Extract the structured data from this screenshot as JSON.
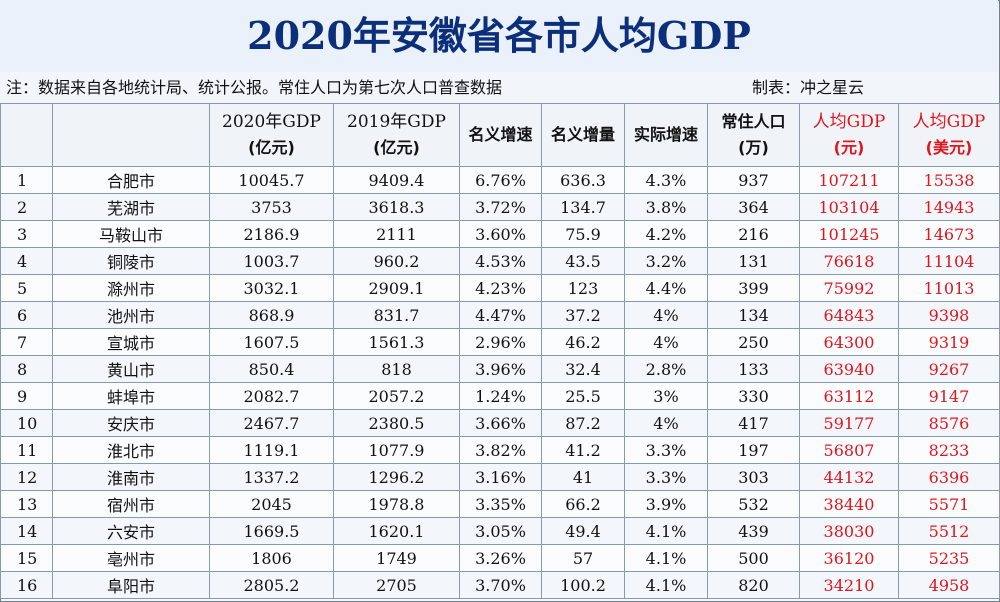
{
  "title": "2020年安徽省各市人均GDP",
  "note": {
    "text": "注：数据来自各地统计局、统计公报。常住人口为第七次人口普查数据",
    "author": "制表：冲之星云"
  },
  "header": {
    "idx": "",
    "city": "",
    "gdp2020_a": "2020年GDP",
    "gdp2020_b": "(亿元)",
    "gdp2019_a": "2019年GDP",
    "gdp2019_b": "(亿元)",
    "nominal_rate": "名义增速",
    "nominal_incr": "名义增量",
    "real_rate": "实际增速",
    "pop_a": "常住人口",
    "pop_b": "(万)",
    "pc_yuan_a": "人均GDP",
    "pc_yuan_b": "(元)",
    "pc_usd_a": "人均GDP",
    "pc_usd_b": "(美元)"
  },
  "rows": [
    {
      "idx": "1",
      "city": "合肥市",
      "gdp2020": "10045.7",
      "gdp2019": "9409.4",
      "nominal_rate": "6.76%",
      "nominal_incr": "636.3",
      "real_rate": "4.3%",
      "pop": "937",
      "pc_yuan": "107211",
      "pc_usd": "15538"
    },
    {
      "idx": "2",
      "city": "芜湖市",
      "gdp2020": "3753",
      "gdp2019": "3618.3",
      "nominal_rate": "3.72%",
      "nominal_incr": "134.7",
      "real_rate": "3.8%",
      "pop": "364",
      "pc_yuan": "103104",
      "pc_usd": "14943"
    },
    {
      "idx": "3",
      "city": "马鞍山市",
      "gdp2020": "2186.9",
      "gdp2019": "2111",
      "nominal_rate": "3.60%",
      "nominal_incr": "75.9",
      "real_rate": "4.2%",
      "pop": "216",
      "pc_yuan": "101245",
      "pc_usd": "14673"
    },
    {
      "idx": "4",
      "city": "铜陵市",
      "gdp2020": "1003.7",
      "gdp2019": "960.2",
      "nominal_rate": "4.53%",
      "nominal_incr": "43.5",
      "real_rate": "3.2%",
      "pop": "131",
      "pc_yuan": "76618",
      "pc_usd": "11104"
    },
    {
      "idx": "5",
      "city": "滁州市",
      "gdp2020": "3032.1",
      "gdp2019": "2909.1",
      "nominal_rate": "4.23%",
      "nominal_incr": "123",
      "real_rate": "4.4%",
      "pop": "399",
      "pc_yuan": "75992",
      "pc_usd": "11013"
    },
    {
      "idx": "6",
      "city": "池州市",
      "gdp2020": "868.9",
      "gdp2019": "831.7",
      "nominal_rate": "4.47%",
      "nominal_incr": "37.2",
      "real_rate": "4%",
      "pop": "134",
      "pc_yuan": "64843",
      "pc_usd": "9398"
    },
    {
      "idx": "7",
      "city": "宣城市",
      "gdp2020": "1607.5",
      "gdp2019": "1561.3",
      "nominal_rate": "2.96%",
      "nominal_incr": "46.2",
      "real_rate": "4%",
      "pop": "250",
      "pc_yuan": "64300",
      "pc_usd": "9319"
    },
    {
      "idx": "8",
      "city": "黄山市",
      "gdp2020": "850.4",
      "gdp2019": "818",
      "nominal_rate": "3.96%",
      "nominal_incr": "32.4",
      "real_rate": "2.8%",
      "pop": "133",
      "pc_yuan": "63940",
      "pc_usd": "9267"
    },
    {
      "idx": "9",
      "city": "蚌埠市",
      "gdp2020": "2082.7",
      "gdp2019": "2057.2",
      "nominal_rate": "1.24%",
      "nominal_incr": "25.5",
      "real_rate": "3%",
      "pop": "330",
      "pc_yuan": "63112",
      "pc_usd": "9147"
    },
    {
      "idx": "10",
      "city": "安庆市",
      "gdp2020": "2467.7",
      "gdp2019": "2380.5",
      "nominal_rate": "3.66%",
      "nominal_incr": "87.2",
      "real_rate": "4%",
      "pop": "417",
      "pc_yuan": "59177",
      "pc_usd": "8576"
    },
    {
      "idx": "11",
      "city": "淮北市",
      "gdp2020": "1119.1",
      "gdp2019": "1077.9",
      "nominal_rate": "3.82%",
      "nominal_incr": "41.2",
      "real_rate": "3.3%",
      "pop": "197",
      "pc_yuan": "56807",
      "pc_usd": "8233"
    },
    {
      "idx": "12",
      "city": "淮南市",
      "gdp2020": "1337.2",
      "gdp2019": "1296.2",
      "nominal_rate": "3.16%",
      "nominal_incr": "41",
      "real_rate": "3.3%",
      "pop": "303",
      "pc_yuan": "44132",
      "pc_usd": "6396"
    },
    {
      "idx": "13",
      "city": "宿州市",
      "gdp2020": "2045",
      "gdp2019": "1978.8",
      "nominal_rate": "3.35%",
      "nominal_incr": "66.2",
      "real_rate": "3.9%",
      "pop": "532",
      "pc_yuan": "38440",
      "pc_usd": "5571"
    },
    {
      "idx": "14",
      "city": "六安市",
      "gdp2020": "1669.5",
      "gdp2019": "1620.1",
      "nominal_rate": "3.05%",
      "nominal_incr": "49.4",
      "real_rate": "4.1%",
      "pop": "439",
      "pc_yuan": "38030",
      "pc_usd": "5512"
    },
    {
      "idx": "15",
      "city": "亳州市",
      "gdp2020": "1806",
      "gdp2019": "1749",
      "nominal_rate": "3.26%",
      "nominal_incr": "57",
      "real_rate": "4.1%",
      "pop": "500",
      "pc_yuan": "36120",
      "pc_usd": "5235"
    },
    {
      "idx": "16",
      "city": "阜阳市",
      "gdp2020": "2805.2",
      "gdp2019": "2705",
      "nominal_rate": "3.70%",
      "nominal_incr": "100.2",
      "real_rate": "4.1%",
      "pop": "820",
      "pc_yuan": "34210",
      "pc_usd": "4958"
    }
  ]
}
